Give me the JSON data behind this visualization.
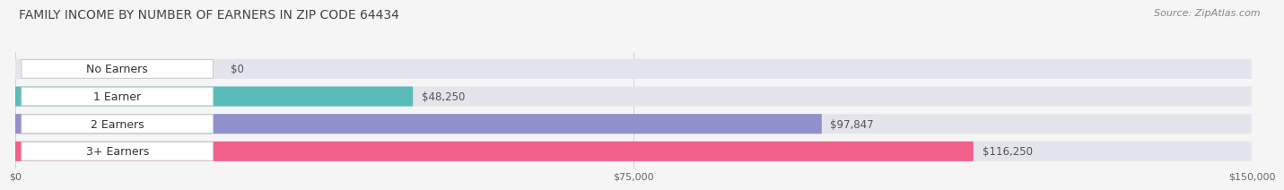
{
  "title": "FAMILY INCOME BY NUMBER OF EARNERS IN ZIP CODE 64434",
  "source": "Source: ZipAtlas.com",
  "categories": [
    "No Earners",
    "1 Earner",
    "2 Earners",
    "3+ Earners"
  ],
  "values": [
    0,
    48250,
    97847,
    116250
  ],
  "bar_colors": [
    "#c9a0dc",
    "#5abcb8",
    "#9090cc",
    "#f0608a"
  ],
  "value_labels": [
    "$0",
    "$48,250",
    "$97,847",
    "$116,250"
  ],
  "xlim": [
    0,
    150000
  ],
  "xtick_values": [
    0,
    75000,
    150000
  ],
  "xtick_labels": [
    "$0",
    "$75,000",
    "$150,000"
  ],
  "bg_color": "#f5f5f5",
  "bar_bg_color": "#e4e4ec",
  "title_fontsize": 10,
  "source_fontsize": 8,
  "label_fontsize": 9,
  "value_fontsize": 8.5,
  "bar_height": 0.72,
  "n_bars": 4
}
